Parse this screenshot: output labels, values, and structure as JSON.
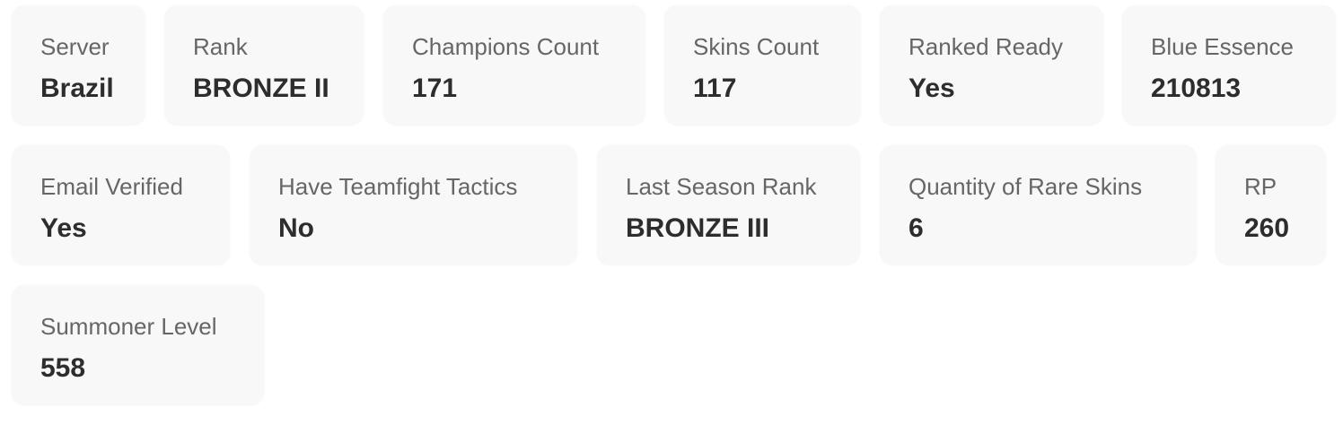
{
  "stats": [
    {
      "label": "Server",
      "value": "Brazil"
    },
    {
      "label": "Rank",
      "value": "BRONZE II"
    },
    {
      "label": "Champions Count",
      "value": "171"
    },
    {
      "label": "Skins Count",
      "value": "117"
    },
    {
      "label": "Ranked Ready",
      "value": "Yes"
    },
    {
      "label": "Blue Essence",
      "value": "210813"
    },
    {
      "label": "Email Verified",
      "value": "Yes"
    },
    {
      "label": "Have Teamfight Tactics",
      "value": "No"
    },
    {
      "label": "Last Season Rank",
      "value": "BRONZE III"
    },
    {
      "label": "Quantity of Rare Skins",
      "value": "6"
    },
    {
      "label": "RP",
      "value": "260"
    },
    {
      "label": "Summoner Level",
      "value": "558"
    }
  ]
}
